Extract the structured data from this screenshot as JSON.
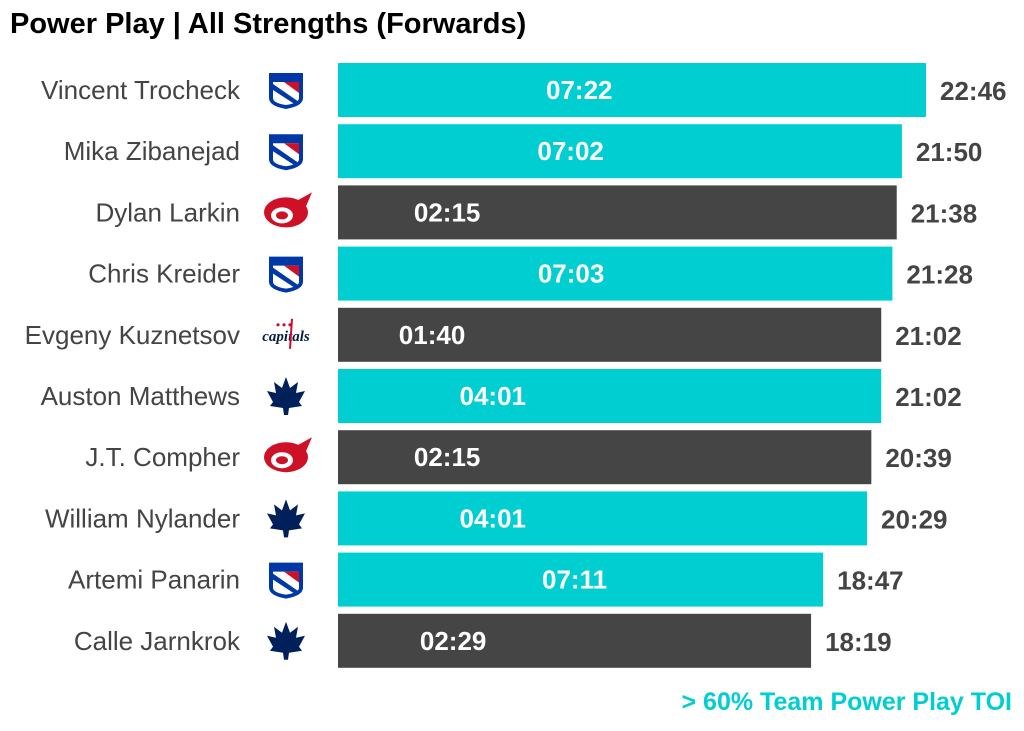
{
  "chart_data": {
    "type": "bar",
    "orientation": "horizontal",
    "title": "Power Play | All Strengths (Forwards)",
    "footnote": "> 60% Team Power Play TOI",
    "colors": {
      "highlight": "#00CED1",
      "default": "#454545",
      "name_text": "#444444",
      "value_text": "#444444",
      "inner_text": "#ffffff"
    },
    "xlim_seconds": [
      0,
      1366
    ],
    "players": [
      {
        "name": "Vincent Trocheck",
        "team": "NYR",
        "total_toi": "22:46",
        "pp_toi": "07:22",
        "highlight": true
      },
      {
        "name": "Mika Zibanejad",
        "team": "NYR",
        "total_toi": "21:50",
        "pp_toi": "07:02",
        "highlight": true
      },
      {
        "name": "Dylan Larkin",
        "team": "DET",
        "total_toi": "21:38",
        "pp_toi": "02:15",
        "highlight": false
      },
      {
        "name": "Chris Kreider",
        "team": "NYR",
        "total_toi": "21:28",
        "pp_toi": "07:03",
        "highlight": true
      },
      {
        "name": "Evgeny Kuznetsov",
        "team": "WSH",
        "total_toi": "21:02",
        "pp_toi": "01:40",
        "highlight": false
      },
      {
        "name": "Auston Matthews",
        "team": "TOR",
        "total_toi": "21:02",
        "pp_toi": "04:01",
        "highlight": true
      },
      {
        "name": "J.T. Compher",
        "team": "DET",
        "total_toi": "20:39",
        "pp_toi": "02:15",
        "highlight": false
      },
      {
        "name": "William Nylander",
        "team": "TOR",
        "total_toi": "20:29",
        "pp_toi": "04:01",
        "highlight": true
      },
      {
        "name": "Artemi Panarin",
        "team": "NYR",
        "total_toi": "18:47",
        "pp_toi": "07:11",
        "highlight": true
      },
      {
        "name": "Calle Jarnkrok",
        "team": "TOR",
        "total_toi": "18:19",
        "pp_toi": "02:29",
        "highlight": false
      }
    ]
  }
}
